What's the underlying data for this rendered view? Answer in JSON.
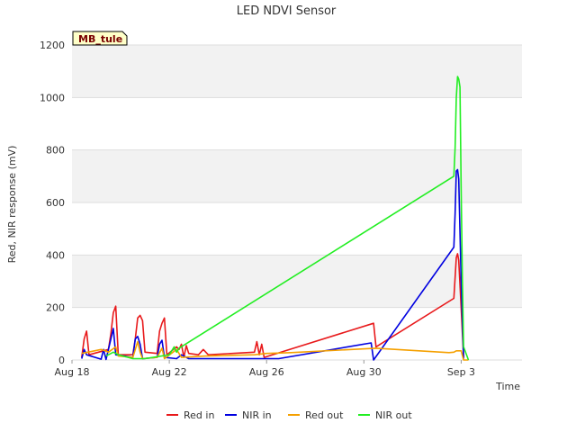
{
  "chart_data": {
    "type": "line",
    "title": "LED NDVI Sensor",
    "badge": "MB_tule",
    "xlabel": "Time",
    "ylabel": "Red, NIR response (mV)",
    "xlim": [
      0,
      18.5
    ],
    "ylim": [
      0,
      1200
    ],
    "yticks": [
      0,
      200,
      400,
      600,
      800,
      1000,
      1200
    ],
    "xticks": [
      {
        "value": 0,
        "label": "Aug 18"
      },
      {
        "value": 4,
        "label": "Aug 22"
      },
      {
        "value": 8,
        "label": "Aug 26"
      },
      {
        "value": 12,
        "label": "Aug 30"
      },
      {
        "value": 16,
        "label": "Sep 3"
      }
    ],
    "band_color": "#f2f2f2",
    "grid_color": "#dddddd",
    "series": [
      {
        "name": "Red in",
        "color": "#e8191b",
        "points": [
          [
            0.4,
            10
          ],
          [
            0.5,
            80
          ],
          [
            0.6,
            110
          ],
          [
            0.7,
            20
          ],
          [
            1.5,
            40
          ],
          [
            1.6,
            100
          ],
          [
            1.7,
            180
          ],
          [
            1.8,
            205
          ],
          [
            1.9,
            20
          ],
          [
            2.5,
            20
          ],
          [
            2.6,
            80
          ],
          [
            2.7,
            160
          ],
          [
            2.8,
            170
          ],
          [
            2.9,
            150
          ],
          [
            3.0,
            30
          ],
          [
            3.5,
            25
          ],
          [
            3.6,
            110
          ],
          [
            3.7,
            140
          ],
          [
            3.8,
            160
          ],
          [
            3.9,
            20
          ],
          [
            4.3,
            50
          ],
          [
            4.4,
            40
          ],
          [
            4.5,
            60
          ],
          [
            4.6,
            10
          ],
          [
            4.7,
            55
          ],
          [
            4.8,
            25
          ],
          [
            5.2,
            20
          ],
          [
            5.4,
            40
          ],
          [
            5.6,
            20
          ],
          [
            7.5,
            30
          ],
          [
            7.6,
            70
          ],
          [
            7.7,
            20
          ],
          [
            7.8,
            60
          ],
          [
            7.9,
            10
          ],
          [
            12.4,
            140
          ],
          [
            12.5,
            50
          ],
          [
            15.7,
            235
          ],
          [
            15.8,
            390
          ],
          [
            15.85,
            405
          ],
          [
            15.9,
            380
          ],
          [
            16.0,
            200
          ],
          [
            16.1,
            10
          ]
        ]
      },
      {
        "name": "NIR in",
        "color": "#0000e0",
        "points": [
          [
            0.4,
            5
          ],
          [
            0.5,
            40
          ],
          [
            0.6,
            20
          ],
          [
            1.2,
            3
          ],
          [
            1.3,
            40
          ],
          [
            1.4,
            2
          ],
          [
            1.6,
            80
          ],
          [
            1.7,
            120
          ],
          [
            1.8,
            20
          ],
          [
            2.5,
            10
          ],
          [
            2.6,
            80
          ],
          [
            2.7,
            90
          ],
          [
            2.8,
            60
          ],
          [
            2.9,
            5
          ],
          [
            3.5,
            10
          ],
          [
            3.6,
            60
          ],
          [
            3.7,
            75
          ],
          [
            3.8,
            10
          ],
          [
            4.3,
            5
          ],
          [
            4.5,
            20
          ],
          [
            4.8,
            5
          ],
          [
            7.5,
            5
          ],
          [
            8.5,
            5
          ],
          [
            12.3,
            65
          ],
          [
            12.4,
            0
          ],
          [
            15.7,
            430
          ],
          [
            15.75,
            560
          ],
          [
            15.8,
            720
          ],
          [
            15.85,
            725
          ],
          [
            15.9,
            690
          ],
          [
            16.0,
            300
          ],
          [
            16.1,
            5
          ]
        ]
      },
      {
        "name": "Red out",
        "color": "#f5a000",
        "points": [
          [
            0.4,
            25
          ],
          [
            1.2,
            40
          ],
          [
            1.5,
            30
          ],
          [
            1.8,
            50
          ],
          [
            1.9,
            15
          ],
          [
            2.5,
            10
          ],
          [
            2.7,
            70
          ],
          [
            2.8,
            30
          ],
          [
            2.9,
            5
          ],
          [
            3.5,
            10
          ],
          [
            3.7,
            45
          ],
          [
            3.8,
            5
          ],
          [
            4.3,
            40
          ],
          [
            4.5,
            10
          ],
          [
            5.5,
            15
          ],
          [
            7.5,
            20
          ],
          [
            8.0,
            25
          ],
          [
            9.0,
            28
          ],
          [
            12.5,
            45
          ],
          [
            15.5,
            28
          ],
          [
            15.7,
            30
          ],
          [
            15.8,
            35
          ],
          [
            16.0,
            35
          ],
          [
            16.1,
            0
          ],
          [
            16.3,
            0
          ]
        ]
      },
      {
        "name": "NIR out",
        "color": "#22ee22",
        "points": [
          [
            1.4,
            15
          ],
          [
            1.5,
            20
          ],
          [
            1.7,
            30
          ],
          [
            1.9,
            20
          ],
          [
            2.5,
            5
          ],
          [
            3.0,
            5
          ],
          [
            4.0,
            20
          ],
          [
            4.2,
            50
          ],
          [
            4.3,
            30
          ],
          [
            4.4,
            45
          ],
          [
            15.7,
            700
          ],
          [
            15.75,
            810
          ],
          [
            15.8,
            1000
          ],
          [
            15.85,
            1080
          ],
          [
            15.9,
            1070
          ],
          [
            15.95,
            1040
          ],
          [
            16.0,
            650
          ],
          [
            16.05,
            300
          ],
          [
            16.1,
            50
          ],
          [
            16.3,
            0
          ]
        ]
      }
    ],
    "legend": {
      "position": "bottom"
    }
  }
}
